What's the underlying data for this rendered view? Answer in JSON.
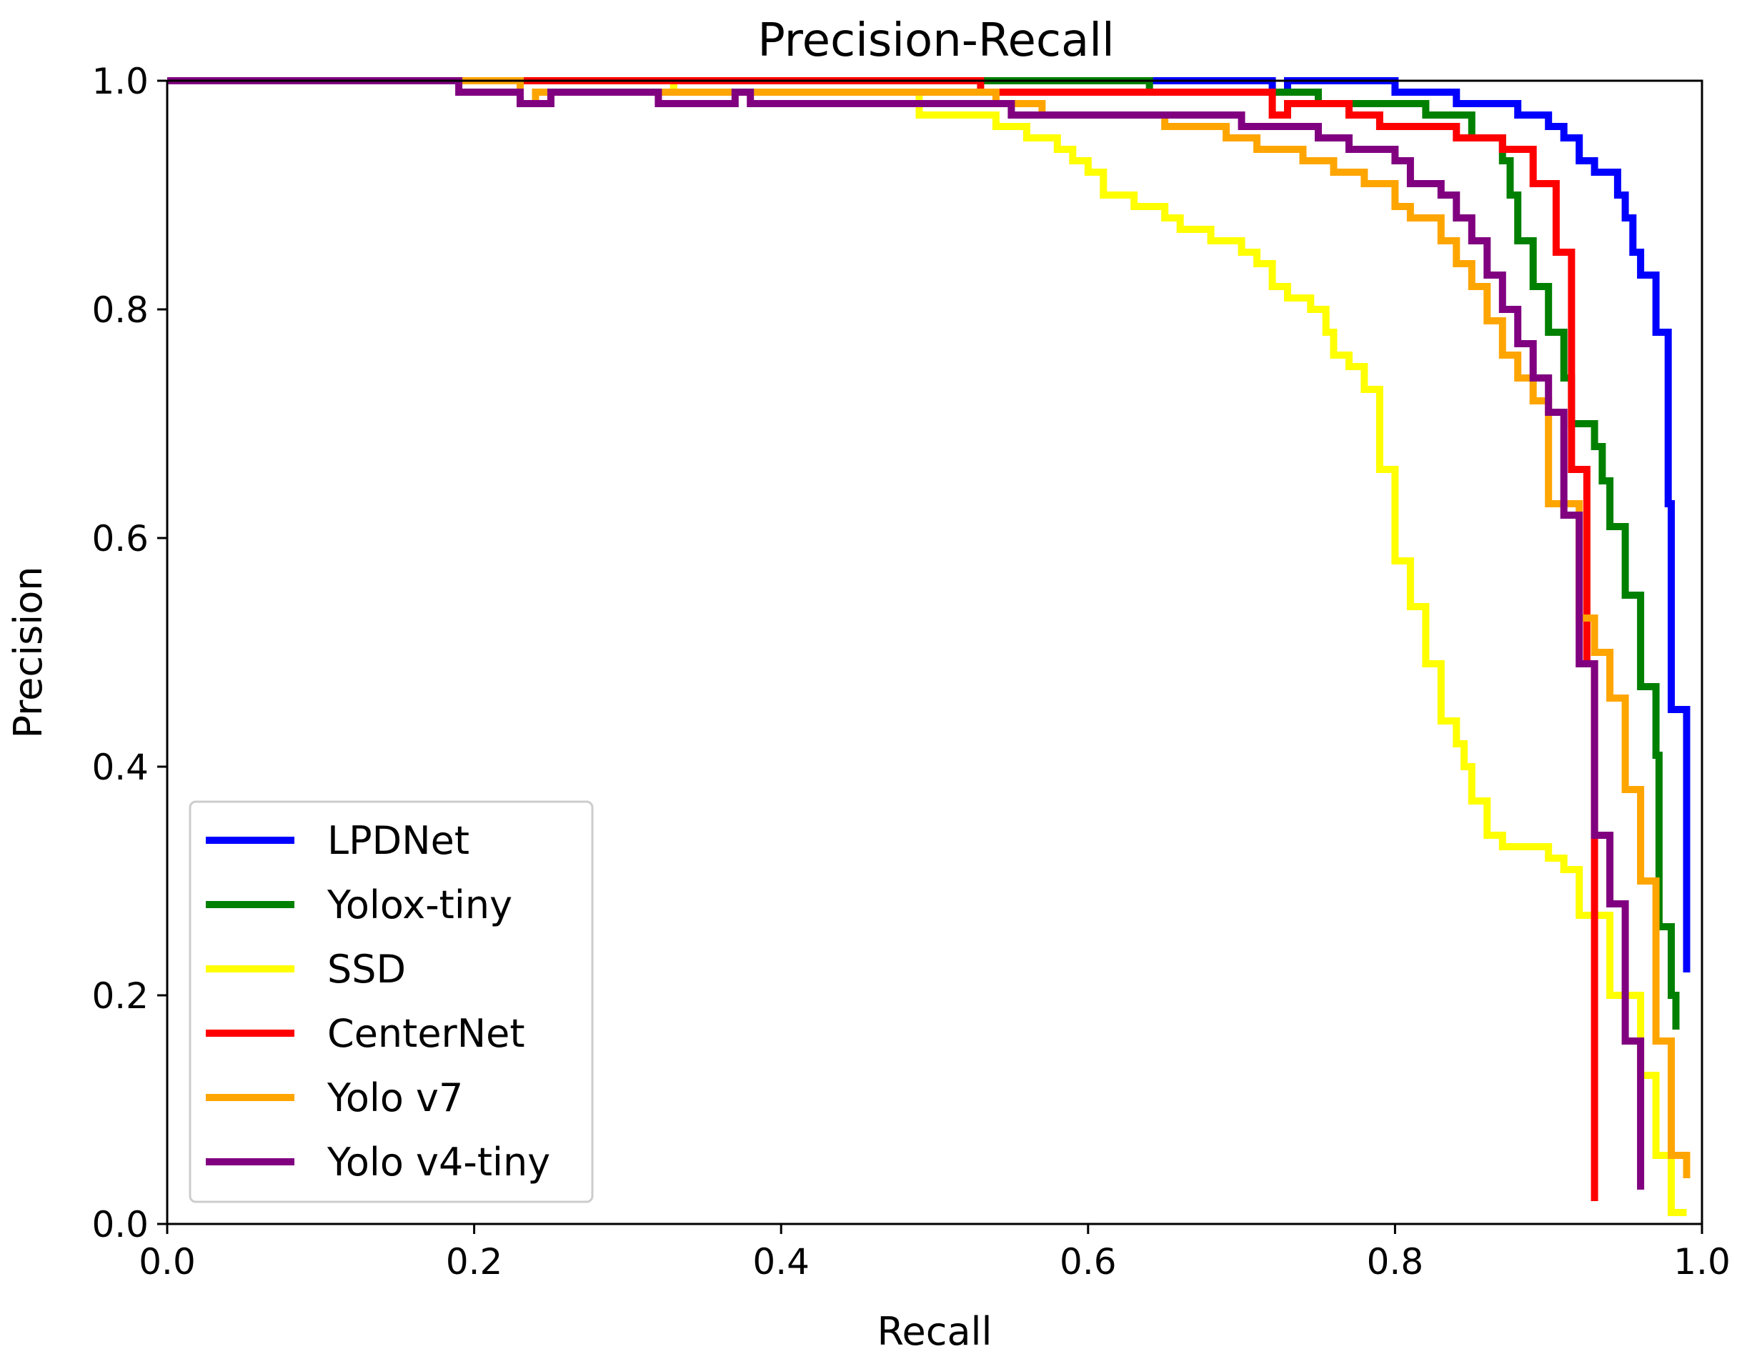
{
  "chart_data": {
    "type": "line",
    "title": "Precision-Recall",
    "xlabel": "Recall",
    "ylabel": "Precision",
    "xlim": [
      0.0,
      1.0
    ],
    "ylim": [
      0.0,
      1.0
    ],
    "xticks": [
      "0.0",
      "0.2",
      "0.4",
      "0.6",
      "0.8",
      "1.0"
    ],
    "yticks": [
      "0.0",
      "0.2",
      "0.4",
      "0.6",
      "0.8",
      "1.0"
    ],
    "grid": false,
    "legend_position": "lower-left",
    "series": [
      {
        "name": "LPDNet",
        "color": "#0000ff",
        "points": [
          [
            0.0,
            1.0
          ],
          [
            0.72,
            1.0
          ],
          [
            0.72,
            0.99
          ],
          [
            0.73,
            0.99
          ],
          [
            0.73,
            1.0
          ],
          [
            0.8,
            1.0
          ],
          [
            0.8,
            0.99
          ],
          [
            0.84,
            0.99
          ],
          [
            0.84,
            0.98
          ],
          [
            0.88,
            0.98
          ],
          [
            0.88,
            0.97
          ],
          [
            0.9,
            0.97
          ],
          [
            0.9,
            0.96
          ],
          [
            0.91,
            0.96
          ],
          [
            0.91,
            0.95
          ],
          [
            0.92,
            0.95
          ],
          [
            0.92,
            0.93
          ],
          [
            0.93,
            0.93
          ],
          [
            0.93,
            0.92
          ],
          [
            0.945,
            0.92
          ],
          [
            0.945,
            0.9
          ],
          [
            0.95,
            0.9
          ],
          [
            0.95,
            0.88
          ],
          [
            0.955,
            0.88
          ],
          [
            0.955,
            0.85
          ],
          [
            0.96,
            0.85
          ],
          [
            0.96,
            0.83
          ],
          [
            0.97,
            0.83
          ],
          [
            0.97,
            0.78
          ],
          [
            0.978,
            0.78
          ],
          [
            0.978,
            0.63
          ],
          [
            0.98,
            0.63
          ],
          [
            0.98,
            0.45
          ],
          [
            0.99,
            0.45
          ],
          [
            0.99,
            0.22
          ]
        ]
      },
      {
        "name": "Yolox-tiny",
        "color": "#008000",
        "points": [
          [
            0.0,
            1.0
          ],
          [
            0.64,
            1.0
          ],
          [
            0.64,
            0.99
          ],
          [
            0.75,
            0.99
          ],
          [
            0.75,
            0.98
          ],
          [
            0.82,
            0.98
          ],
          [
            0.82,
            0.97
          ],
          [
            0.85,
            0.97
          ],
          [
            0.85,
            0.95
          ],
          [
            0.87,
            0.95
          ],
          [
            0.87,
            0.93
          ],
          [
            0.875,
            0.93
          ],
          [
            0.875,
            0.9
          ],
          [
            0.88,
            0.9
          ],
          [
            0.88,
            0.86
          ],
          [
            0.89,
            0.86
          ],
          [
            0.89,
            0.82
          ],
          [
            0.9,
            0.82
          ],
          [
            0.9,
            0.78
          ],
          [
            0.91,
            0.78
          ],
          [
            0.91,
            0.74
          ],
          [
            0.915,
            0.74
          ],
          [
            0.915,
            0.7
          ],
          [
            0.93,
            0.7
          ],
          [
            0.93,
            0.68
          ],
          [
            0.935,
            0.68
          ],
          [
            0.935,
            0.65
          ],
          [
            0.94,
            0.65
          ],
          [
            0.94,
            0.61
          ],
          [
            0.95,
            0.61
          ],
          [
            0.95,
            0.55
          ],
          [
            0.96,
            0.55
          ],
          [
            0.96,
            0.47
          ],
          [
            0.97,
            0.47
          ],
          [
            0.97,
            0.41
          ],
          [
            0.972,
            0.41
          ],
          [
            0.972,
            0.26
          ],
          [
            0.98,
            0.26
          ],
          [
            0.98,
            0.2
          ],
          [
            0.983,
            0.2
          ],
          [
            0.983,
            0.17
          ]
        ]
      },
      {
        "name": "SSD",
        "color": "#ffff00",
        "points": [
          [
            0.0,
            1.0
          ],
          [
            0.33,
            1.0
          ],
          [
            0.33,
            0.99
          ],
          [
            0.49,
            0.99
          ],
          [
            0.49,
            0.97
          ],
          [
            0.54,
            0.97
          ],
          [
            0.54,
            0.96
          ],
          [
            0.56,
            0.96
          ],
          [
            0.56,
            0.95
          ],
          [
            0.58,
            0.95
          ],
          [
            0.58,
            0.94
          ],
          [
            0.59,
            0.94
          ],
          [
            0.59,
            0.93
          ],
          [
            0.6,
            0.93
          ],
          [
            0.6,
            0.92
          ],
          [
            0.61,
            0.92
          ],
          [
            0.61,
            0.9
          ],
          [
            0.63,
            0.9
          ],
          [
            0.63,
            0.89
          ],
          [
            0.65,
            0.89
          ],
          [
            0.65,
            0.88
          ],
          [
            0.66,
            0.88
          ],
          [
            0.66,
            0.87
          ],
          [
            0.68,
            0.87
          ],
          [
            0.68,
            0.86
          ],
          [
            0.7,
            0.86
          ],
          [
            0.7,
            0.85
          ],
          [
            0.71,
            0.85
          ],
          [
            0.71,
            0.84
          ],
          [
            0.72,
            0.84
          ],
          [
            0.72,
            0.82
          ],
          [
            0.73,
            0.82
          ],
          [
            0.73,
            0.81
          ],
          [
            0.745,
            0.81
          ],
          [
            0.745,
            0.8
          ],
          [
            0.755,
            0.8
          ],
          [
            0.755,
            0.78
          ],
          [
            0.76,
            0.78
          ],
          [
            0.76,
            0.76
          ],
          [
            0.77,
            0.76
          ],
          [
            0.77,
            0.75
          ],
          [
            0.78,
            0.75
          ],
          [
            0.78,
            0.73
          ],
          [
            0.79,
            0.73
          ],
          [
            0.79,
            0.66
          ],
          [
            0.8,
            0.66
          ],
          [
            0.8,
            0.58
          ],
          [
            0.81,
            0.58
          ],
          [
            0.81,
            0.54
          ],
          [
            0.82,
            0.54
          ],
          [
            0.82,
            0.49
          ],
          [
            0.83,
            0.49
          ],
          [
            0.83,
            0.44
          ],
          [
            0.84,
            0.44
          ],
          [
            0.84,
            0.42
          ],
          [
            0.845,
            0.42
          ],
          [
            0.845,
            0.4
          ],
          [
            0.85,
            0.4
          ],
          [
            0.85,
            0.37
          ],
          [
            0.86,
            0.37
          ],
          [
            0.86,
            0.34
          ],
          [
            0.87,
            0.34
          ],
          [
            0.87,
            0.33
          ],
          [
            0.9,
            0.33
          ],
          [
            0.9,
            0.32
          ],
          [
            0.91,
            0.32
          ],
          [
            0.91,
            0.31
          ],
          [
            0.92,
            0.31
          ],
          [
            0.92,
            0.27
          ],
          [
            0.94,
            0.27
          ],
          [
            0.94,
            0.2
          ],
          [
            0.96,
            0.2
          ],
          [
            0.96,
            0.13
          ],
          [
            0.97,
            0.13
          ],
          [
            0.97,
            0.06
          ],
          [
            0.98,
            0.06
          ],
          [
            0.98,
            0.01
          ],
          [
            0.99,
            0.01
          ]
        ]
      },
      {
        "name": "CenterNet",
        "color": "#ff0000",
        "points": [
          [
            0.0,
            1.0
          ],
          [
            0.53,
            1.0
          ],
          [
            0.53,
            0.99
          ],
          [
            0.72,
            0.99
          ],
          [
            0.72,
            0.97
          ],
          [
            0.73,
            0.97
          ],
          [
            0.73,
            0.98
          ],
          [
            0.77,
            0.98
          ],
          [
            0.77,
            0.97
          ],
          [
            0.79,
            0.97
          ],
          [
            0.79,
            0.96
          ],
          [
            0.84,
            0.96
          ],
          [
            0.84,
            0.95
          ],
          [
            0.87,
            0.95
          ],
          [
            0.87,
            0.94
          ],
          [
            0.89,
            0.94
          ],
          [
            0.89,
            0.91
          ],
          [
            0.905,
            0.91
          ],
          [
            0.905,
            0.85
          ],
          [
            0.915,
            0.85
          ],
          [
            0.915,
            0.66
          ],
          [
            0.925,
            0.66
          ],
          [
            0.925,
            0.49
          ],
          [
            0.93,
            0.49
          ],
          [
            0.93,
            0.02
          ]
        ]
      },
      {
        "name": "Yolo v7",
        "color": "#ffa500",
        "points": [
          [
            0.0,
            1.0
          ],
          [
            0.23,
            1.0
          ],
          [
            0.23,
            0.98
          ],
          [
            0.24,
            0.98
          ],
          [
            0.24,
            0.99
          ],
          [
            0.54,
            0.99
          ],
          [
            0.54,
            0.98
          ],
          [
            0.57,
            0.98
          ],
          [
            0.57,
            0.97
          ],
          [
            0.65,
            0.97
          ],
          [
            0.65,
            0.96
          ],
          [
            0.69,
            0.96
          ],
          [
            0.69,
            0.95
          ],
          [
            0.71,
            0.95
          ],
          [
            0.71,
            0.94
          ],
          [
            0.74,
            0.94
          ],
          [
            0.74,
            0.93
          ],
          [
            0.76,
            0.93
          ],
          [
            0.76,
            0.92
          ],
          [
            0.77,
            0.92
          ],
          [
            0.77,
            0.92
          ],
          [
            0.78,
            0.92
          ],
          [
            0.78,
            0.91
          ],
          [
            0.8,
            0.91
          ],
          [
            0.8,
            0.89
          ],
          [
            0.81,
            0.89
          ],
          [
            0.81,
            0.88
          ],
          [
            0.83,
            0.88
          ],
          [
            0.83,
            0.86
          ],
          [
            0.84,
            0.86
          ],
          [
            0.84,
            0.84
          ],
          [
            0.85,
            0.84
          ],
          [
            0.85,
            0.82
          ],
          [
            0.86,
            0.82
          ],
          [
            0.86,
            0.79
          ],
          [
            0.87,
            0.79
          ],
          [
            0.87,
            0.76
          ],
          [
            0.88,
            0.76
          ],
          [
            0.88,
            0.74
          ],
          [
            0.89,
            0.74
          ],
          [
            0.89,
            0.72
          ],
          [
            0.9,
            0.72
          ],
          [
            0.9,
            0.63
          ],
          [
            0.92,
            0.63
          ],
          [
            0.92,
            0.53
          ],
          [
            0.93,
            0.53
          ],
          [
            0.93,
            0.5
          ],
          [
            0.94,
            0.5
          ],
          [
            0.94,
            0.46
          ],
          [
            0.95,
            0.46
          ],
          [
            0.95,
            0.38
          ],
          [
            0.96,
            0.38
          ],
          [
            0.96,
            0.3
          ],
          [
            0.97,
            0.3
          ],
          [
            0.97,
            0.16
          ],
          [
            0.98,
            0.16
          ],
          [
            0.98,
            0.06
          ],
          [
            0.99,
            0.06
          ],
          [
            0.99,
            0.04
          ]
        ]
      },
      {
        "name": "Yolo v4-tiny",
        "color": "#800080",
        "points": [
          [
            0.0,
            1.0
          ],
          [
            0.19,
            1.0
          ],
          [
            0.19,
            0.99
          ],
          [
            0.23,
            0.99
          ],
          [
            0.23,
            0.98
          ],
          [
            0.25,
            0.98
          ],
          [
            0.25,
            0.99
          ],
          [
            0.32,
            0.99
          ],
          [
            0.32,
            0.98
          ],
          [
            0.37,
            0.98
          ],
          [
            0.37,
            0.99
          ],
          [
            0.38,
            0.99
          ],
          [
            0.38,
            0.98
          ],
          [
            0.55,
            0.98
          ],
          [
            0.55,
            0.97
          ],
          [
            0.7,
            0.97
          ],
          [
            0.7,
            0.96
          ],
          [
            0.75,
            0.96
          ],
          [
            0.75,
            0.95
          ],
          [
            0.77,
            0.95
          ],
          [
            0.77,
            0.94
          ],
          [
            0.8,
            0.94
          ],
          [
            0.8,
            0.93
          ],
          [
            0.81,
            0.93
          ],
          [
            0.81,
            0.91
          ],
          [
            0.83,
            0.91
          ],
          [
            0.83,
            0.9
          ],
          [
            0.84,
            0.9
          ],
          [
            0.84,
            0.88
          ],
          [
            0.85,
            0.88
          ],
          [
            0.85,
            0.86
          ],
          [
            0.86,
            0.86
          ],
          [
            0.86,
            0.83
          ],
          [
            0.87,
            0.83
          ],
          [
            0.87,
            0.8
          ],
          [
            0.88,
            0.8
          ],
          [
            0.88,
            0.77
          ],
          [
            0.89,
            0.77
          ],
          [
            0.89,
            0.74
          ],
          [
            0.9,
            0.74
          ],
          [
            0.9,
            0.71
          ],
          [
            0.91,
            0.71
          ],
          [
            0.91,
            0.62
          ],
          [
            0.92,
            0.62
          ],
          [
            0.92,
            0.49
          ],
          [
            0.93,
            0.49
          ],
          [
            0.93,
            0.34
          ],
          [
            0.94,
            0.34
          ],
          [
            0.94,
            0.28
          ],
          [
            0.95,
            0.28
          ],
          [
            0.95,
            0.16
          ],
          [
            0.96,
            0.16
          ],
          [
            0.96,
            0.03
          ]
        ]
      }
    ]
  }
}
